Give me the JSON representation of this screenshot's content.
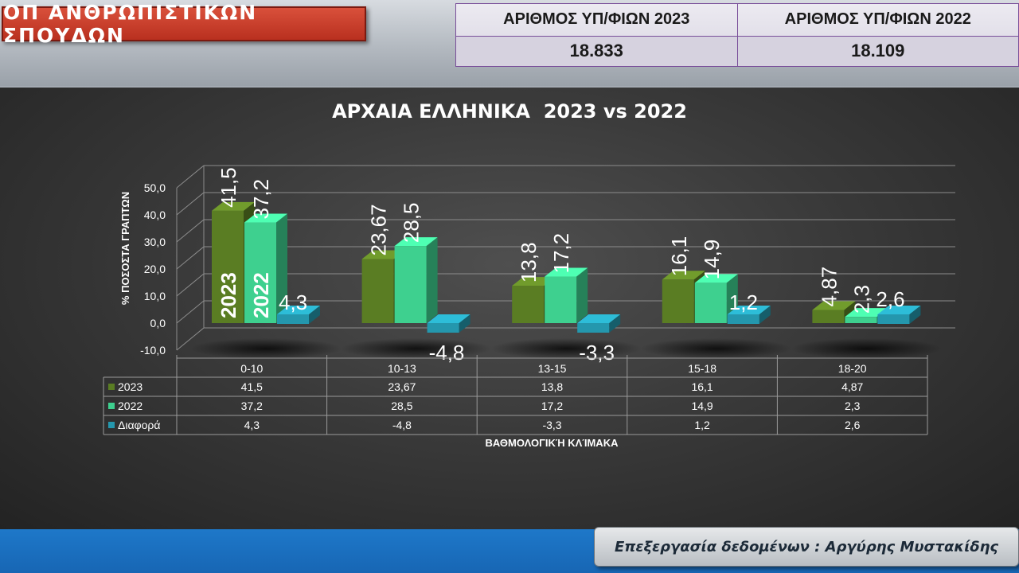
{
  "header": {
    "title": "ΟΠ ΑΝΘΡΩΠΙΣΤΙΚΩΝ ΣΠΟΥΔΩΝ",
    "count_2023_label": "ΑΡΙΘΜΟΣ ΥΠ/ΦΙΩΝ 2023",
    "count_2022_label": "ΑΡΙΘΜΟΣ ΥΠ/ΦΙΩΝ 2022",
    "count_2023_value": "18.833",
    "count_2022_value": "18.109"
  },
  "footer": {
    "credit": "Επεξεργασία δεδομένων : Αργύρης Μυστακίδης"
  },
  "colors": {
    "series_2023": "#5a7d23",
    "series_2022": "#3ed08f",
    "series_diff": "#2497ad",
    "title_bar": "#c63a26",
    "footer_bar": "#1b70c0"
  },
  "chart_data": {
    "type": "bar",
    "title": "ΑΡΧΑΙΑ ΕΛΛΗΝΙΚΑ  2023 vs 2022",
    "xlabel": "ΒΑΘΜΟΛΟΓΙΚΉ ΚΛΊΜΑΚΑ",
    "ylabel": "% ΠΟΣΟΣΤΑ ΓΡΑΠΤΩΝ",
    "ylim": [
      -10,
      50
    ],
    "y_ticks": [
      "-10,0",
      "0,0",
      "10,0",
      "20,0",
      "30,0",
      "40,0",
      "50,0"
    ],
    "grid": true,
    "categories": [
      "0-10",
      "10-13",
      "13-15",
      "15-18",
      "18-20"
    ],
    "series": [
      {
        "name": "2023",
        "values": [
          41.5,
          23.67,
          13.8,
          16.1,
          4.87
        ],
        "labels": [
          "41,5",
          "23,67",
          "13,8",
          "16,1",
          "4,87"
        ]
      },
      {
        "name": "2022",
        "values": [
          37.2,
          28.5,
          17.2,
          14.9,
          2.3
        ],
        "labels": [
          "37,2",
          "28,5",
          "17,2",
          "14,9",
          "2,3"
        ]
      },
      {
        "name": "Διαφορά",
        "values": [
          4.3,
          -4.8,
          -3.3,
          1.2,
          2.6
        ],
        "labels": [
          "4,3",
          "-4,8",
          "-3,3",
          "1,2",
          "2,6"
        ]
      }
    ],
    "bar_annotations": [
      "2023",
      "2022"
    ],
    "legend": "data-table"
  }
}
